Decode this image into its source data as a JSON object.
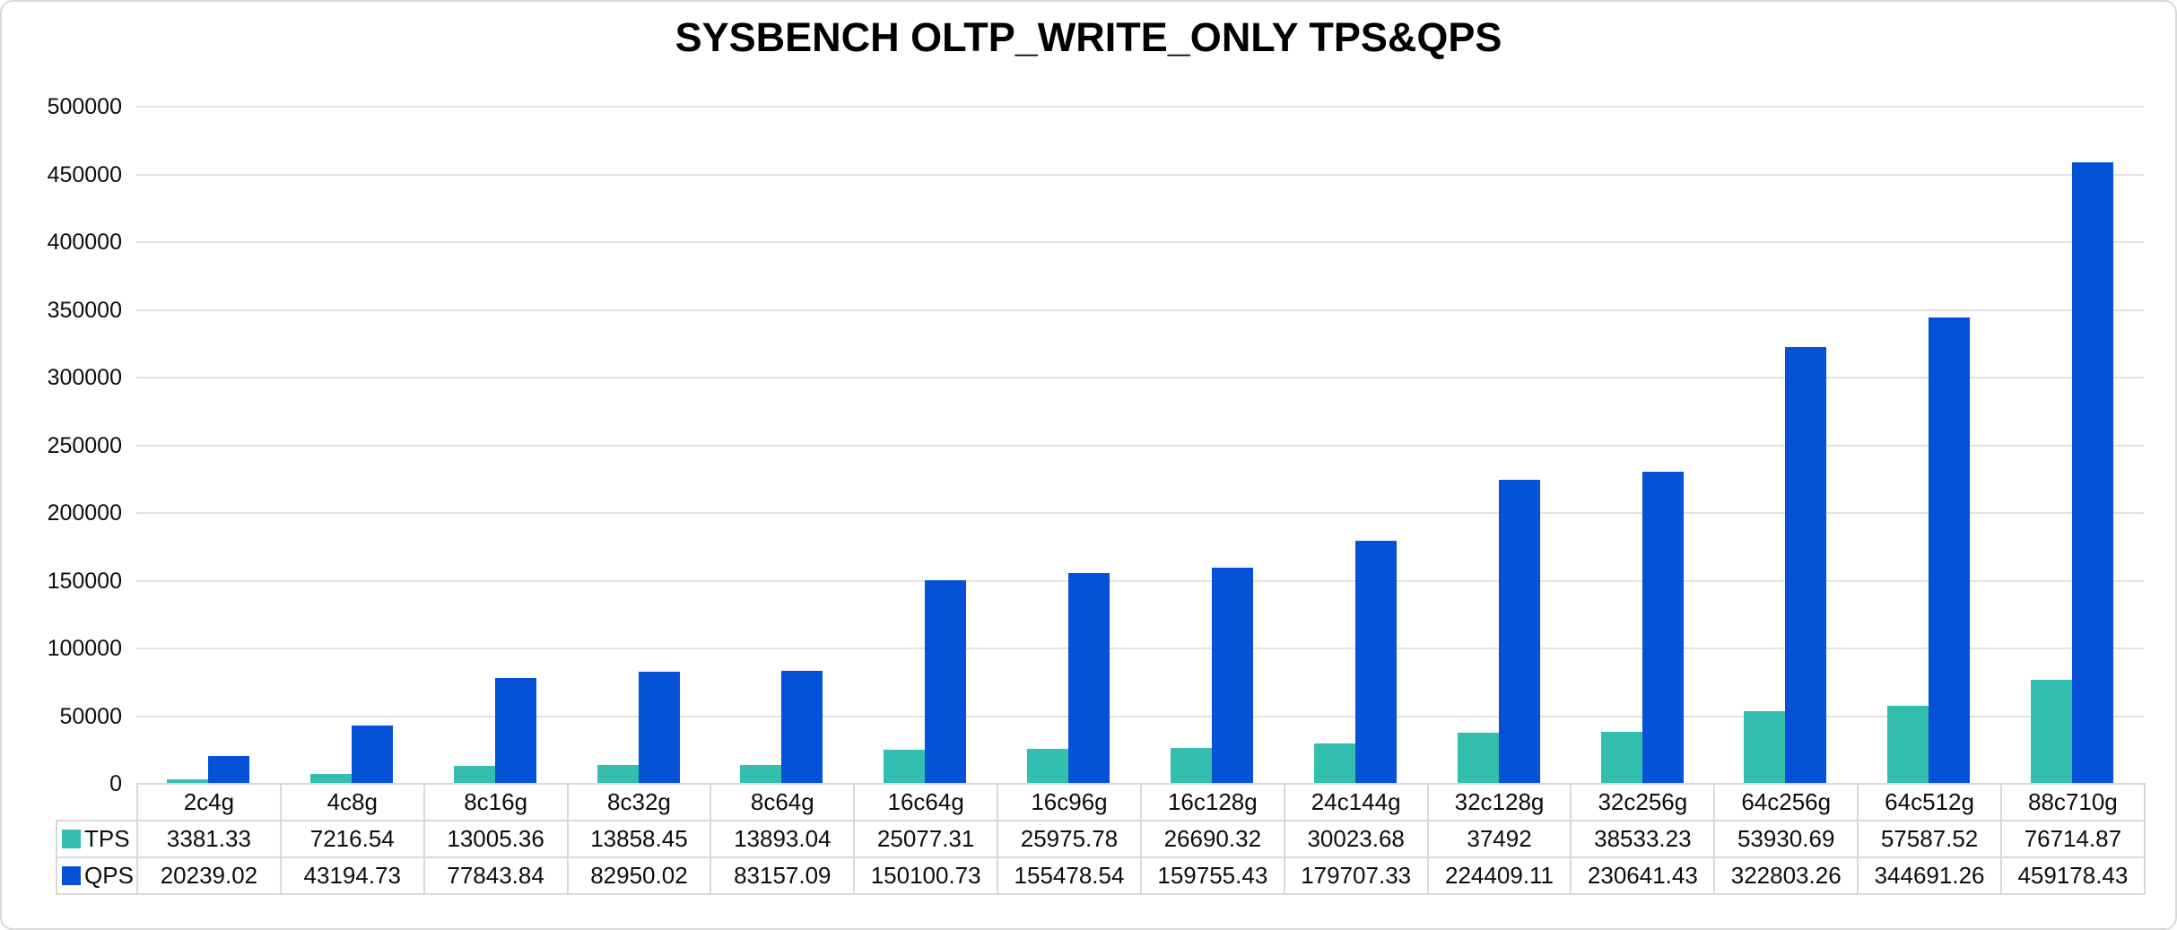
{
  "chart_data": {
    "type": "bar",
    "title": "SYSBENCH OLTP_WRITE_ONLY TPS&QPS",
    "categories": [
      "2c4g",
      "4c8g",
      "8c16g",
      "8c32g",
      "8c64g",
      "16c64g",
      "16c96g",
      "16c128g",
      "24c144g",
      "32c128g",
      "32c256g",
      "64c256g",
      "64c512g",
      "88c710g"
    ],
    "series": [
      {
        "name": "TPS",
        "color": "#32bfb0",
        "values": [
          3381.33,
          7216.54,
          13005.36,
          13858.45,
          13893.04,
          25077.31,
          25975.78,
          26690.32,
          30023.68,
          37492,
          38533.23,
          53930.69,
          57587.52,
          76714.87
        ]
      },
      {
        "name": "QPS",
        "color": "#0551d8",
        "values": [
          20239.02,
          43194.73,
          77843.84,
          82950.02,
          83157.09,
          150100.73,
          155478.54,
          159755.43,
          179707.33,
          224409.11,
          230641.43,
          322803.26,
          344691.26,
          459178.43
        ]
      }
    ],
    "xlabel": "",
    "ylabel": "",
    "ylim": [
      0,
      500000
    ],
    "yticks": [
      0,
      50000,
      100000,
      150000,
      200000,
      250000,
      300000,
      350000,
      400000,
      450000,
      500000
    ],
    "grid": true,
    "legend_position": "data-table-left-column",
    "data_table_shown": true
  },
  "colors": {
    "grid_line": "#e2e2e5",
    "table_border": "#d9d9d9",
    "outer_border": "#d9d9d9",
    "text": "#0d0d0d",
    "background": "#ffffff"
  }
}
